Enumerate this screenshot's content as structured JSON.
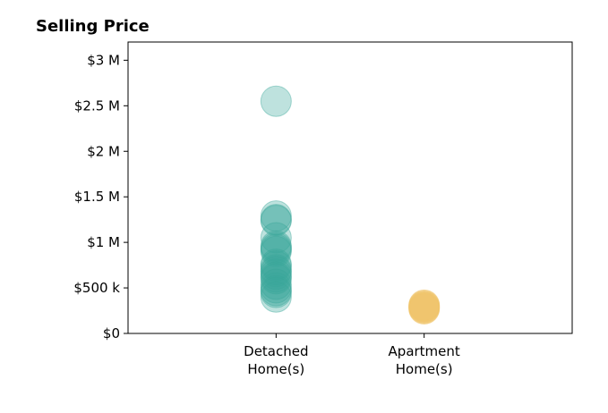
{
  "chart_data": {
    "type": "scatter",
    "title": "Selling Price",
    "xlabel": "",
    "ylabel": "",
    "categories": [
      [
        "Detached",
        "Home(s)"
      ],
      [
        "Apartment",
        "Home(s)"
      ]
    ],
    "xlim": [
      -1,
      2
    ],
    "ylim": [
      0,
      3200000
    ],
    "yticks": [
      {
        "value": 0,
        "label": "$0"
      },
      {
        "value": 500000,
        "label": "$500 k"
      },
      {
        "value": 1000000,
        "label": "$1 M"
      },
      {
        "value": 1500000,
        "label": "$1.5 M"
      },
      {
        "value": 2000000,
        "label": "$2 M"
      },
      {
        "value": 2500000,
        "label": "$2.5 M"
      },
      {
        "value": 3000000,
        "label": "$3 M"
      }
    ],
    "grid": false,
    "series": [
      {
        "category": 0,
        "color": "#3aa89a",
        "opacity": 0.33,
        "values": [
          2550000,
          1290000,
          1250000,
          1240000,
          1050000,
          960000,
          940000,
          920000,
          900000,
          760000,
          740000,
          700000,
          680000,
          650000,
          620000,
          600000,
          540000,
          500000,
          470000,
          450000,
          400000
        ]
      },
      {
        "category": 1,
        "color": "#f0c46a",
        "opacity": 0.5,
        "values": [
          310000,
          300000,
          290000,
          280000,
          270000
        ]
      }
    ]
  }
}
